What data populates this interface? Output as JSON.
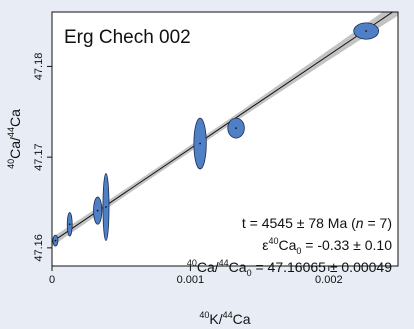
{
  "chart_data": {
    "type": "scatter",
    "title": "Erg Chech 002",
    "xlabel": {
      "sup": "40",
      "main": "K/",
      "sup2": "44",
      "main2": "Ca"
    },
    "ylabel": {
      "sup": "40",
      "main": "Ca/",
      "sup2": "44",
      "main2": "Ca"
    },
    "xlim": [
      0,
      0.0025
    ],
    "ylim": [
      47.158,
      47.186
    ],
    "x_ticks": [
      {
        "value": 0,
        "label": "0"
      },
      {
        "value": 0.001,
        "label": "0.001"
      },
      {
        "value": 0.002,
        "label": "0.002"
      }
    ],
    "y_ticks": [
      {
        "value": 47.16,
        "label": "47.16"
      },
      {
        "value": 47.17,
        "label": "47.17"
      },
      {
        "value": 47.18,
        "label": "47.18"
      }
    ],
    "isochron": {
      "intercept": 47.16065,
      "slope": 10.3
    },
    "points": [
      {
        "x": 2.5e-05,
        "y": 47.1608,
        "sx": 1.2e-05,
        "sy": 0.0006
      },
      {
        "x": 0.000128,
        "y": 47.1626,
        "sx": 1.2e-05,
        "sy": 0.0013
      },
      {
        "x": 0.00033,
        "y": 47.1641,
        "sx": 3e-05,
        "sy": 0.0015
      },
      {
        "x": 0.00039,
        "y": 47.1645,
        "sx": 2.2e-05,
        "sy": 0.0037
      },
      {
        "x": 0.00107,
        "y": 47.1715,
        "sx": 4.5e-05,
        "sy": 0.0028
      },
      {
        "x": 0.00133,
        "y": 47.1732,
        "sx": 6e-05,
        "sy": 0.0011
      },
      {
        "x": 0.00227,
        "y": 47.1839,
        "sx": 9e-05,
        "sy": 0.0009
      }
    ],
    "colors": {
      "ellipse_fill": "#4f80c6",
      "ellipse_stroke": "#1b2b4d",
      "band": "#b8b8b8",
      "line": "#111111"
    },
    "stats": {
      "age": "t = 4545 ± 78 Ma (",
      "n_italic": "n",
      "n_value": " = 7)",
      "epsilon_prefix": "ε",
      "epsilon_sup": "40",
      "epsilon_main": "Ca",
      "epsilon_sub": "0",
      "epsilon_value": " = -0.33 ± 0.10",
      "ratio_sup1": "40",
      "ratio_main1": "Ca/",
      "ratio_sup2": "44",
      "ratio_main2": "Ca",
      "ratio_sub": "0",
      "ratio_value": " = 47.16065 ± 0.00049"
    }
  }
}
